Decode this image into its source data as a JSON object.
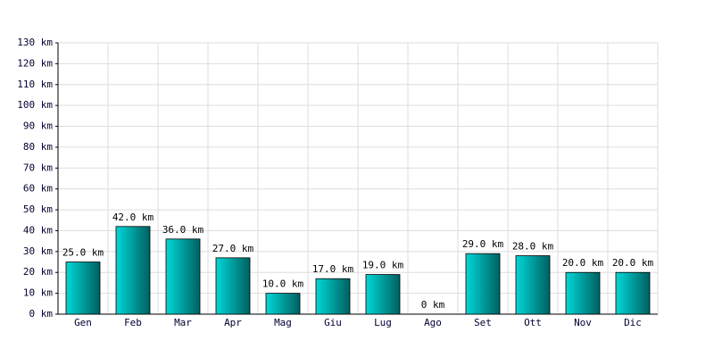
{
  "chart_data": {
    "type": "bar",
    "categories": [
      "Gen",
      "Feb",
      "Mar",
      "Apr",
      "Mag",
      "Giu",
      "Lug",
      "Ago",
      "Set",
      "Ott",
      "Nov",
      "Dic"
    ],
    "values": [
      25,
      42,
      36,
      27,
      10,
      17,
      19,
      0,
      29,
      28,
      20,
      20
    ],
    "value_labels": [
      "25.0 km",
      "42.0 km",
      "36.0 km",
      "27.0 km",
      "10.0 km",
      "17.0 km",
      "19.0 km",
      "0 km",
      "29.0 km",
      "28.0 km",
      "20.0 km",
      "20.0 km"
    ],
    "color": "#00d8d8",
    "ylim": [
      0,
      130
    ],
    "yticks": [
      {
        "value": 0,
        "label": "0 km"
      },
      {
        "value": 10,
        "label": "10 km"
      },
      {
        "value": 20,
        "label": "20 km"
      },
      {
        "value": 30,
        "label": "30 km"
      },
      {
        "value": 40,
        "label": "40 km"
      },
      {
        "value": 50,
        "label": "50 km"
      },
      {
        "value": 60,
        "label": "60 km"
      },
      {
        "value": 70,
        "label": "70 km"
      },
      {
        "value": 80,
        "label": "80 km"
      },
      {
        "value": 90,
        "label": "90 km"
      },
      {
        "value": 100,
        "label": "100 km"
      },
      {
        "value": 110,
        "label": "110 km"
      },
      {
        "value": 120,
        "label": "120 km"
      },
      {
        "value": 130,
        "label": "130 km"
      }
    ],
    "grid": true
  }
}
